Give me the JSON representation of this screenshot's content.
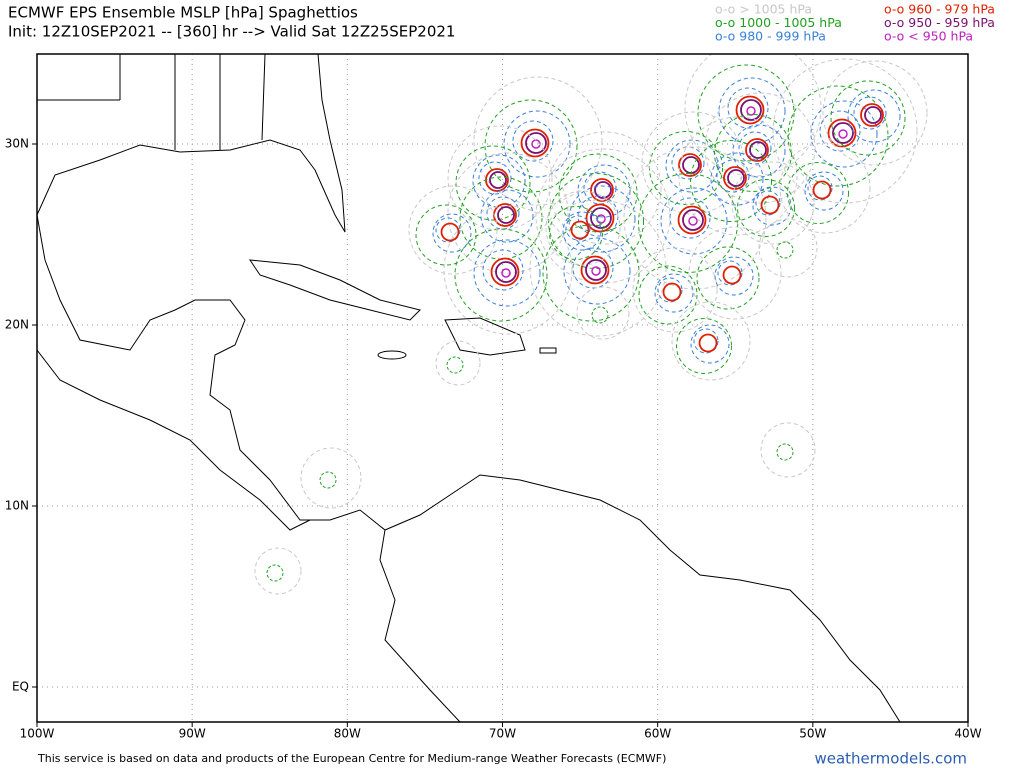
{
  "header": {
    "title": "ECMWF EPS Ensemble MSLP [hPa] Spaghettios",
    "subtitle": "Init: 12Z10SEP2021 -- [360] hr --> Valid Sat 12Z25SEP2021"
  },
  "legend": [
    {
      "label": "o-o > 1005 hPa",
      "color": "#c8c8c8"
    },
    {
      "label": "o-o 1000 - 1005 hPa",
      "color": "#22a022"
    },
    {
      "label": "o-o 980 - 999 hPa",
      "color": "#3a7fd8"
    },
    {
      "label": "o-o 960 - 979 hPa",
      "color": "#e02000"
    },
    {
      "label": "o-o 950 - 959 hPa",
      "color": "#7a1070"
    },
    {
      "label": "o-o < 950 hPa",
      "color": "#c020c0"
    }
  ],
  "axes": {
    "longitude": [
      "100W",
      "90W",
      "80W",
      "70W",
      "60W",
      "50W",
      "40W"
    ],
    "latitude": [
      "30N",
      "20N",
      "10N",
      "EQ"
    ]
  },
  "footer": {
    "notice": "This service is based on data and products of the European Centre for Medium-range Weather Forecasts (ECMWF)",
    "brand": "weathermodels.com"
  }
}
